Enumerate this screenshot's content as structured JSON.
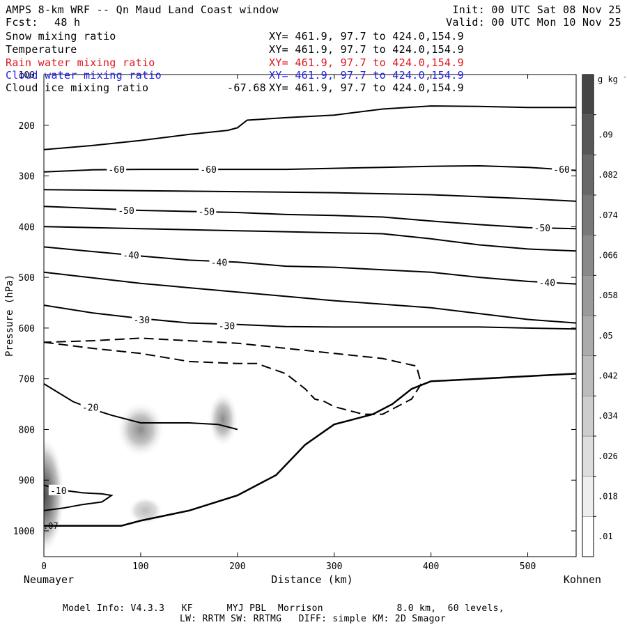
{
  "header": {
    "title": "AMPS 8-km WRF -- Qn Maud Land Coast window",
    "fcst_label": "Fcst:",
    "fcst_value": "48 h",
    "init": "Init: 00 UTC Sat 08 Nov 25",
    "valid": "Valid: 00 UTC Mon 10 Nov 25"
  },
  "fields": [
    {
      "label": "Snow mixing ratio",
      "xy": "XY= 461.9, 97.7 to 424.0,154.9",
      "color": "#000000"
    },
    {
      "label": "Temperature",
      "xy": "XY= 461.9, 97.7 to 424.0,154.9",
      "color": "#000000"
    },
    {
      "label": "Rain water mixing ratio",
      "xy": "XY= 461.9, 97.7 to 424.0,154.9",
      "color": "#e0141e"
    },
    {
      "label": "Cloud water mixing ratio",
      "xy": "XY= 461.9, 97.7 to 424.0,154.9",
      "color": "#1e1ee0"
    },
    {
      "label": "Cloud ice mixing ratio",
      "xy": "XY= 461.9, 97.7 to 424.0,154.9",
      "color": "#000000",
      "value": "-67.68"
    }
  ],
  "footer": {
    "line1": "Model Info: V4.3.3   KF      MYJ PBL  Morrison             8.0 km,  60 levels,",
    "line2": "LW: RRTM SW: RRTMG   DIFF: simple KM: 2D Smagor"
  },
  "chart_data": {
    "type": "contour",
    "xlabel": "Distance (km)",
    "ylabel": "Pressure (hPa)",
    "x_left_label": "Neumayer",
    "x_right_label": "Kohnen",
    "xlim": [
      0,
      550
    ],
    "ylim": [
      1050,
      100
    ],
    "x_ticks": [
      0,
      100,
      200,
      300,
      400,
      500
    ],
    "y_ticks": [
      100,
      200,
      300,
      400,
      500,
      600,
      700,
      800,
      900,
      1000
    ],
    "colorbar": {
      "unit": "g kg",
      "unit_exp": "-1",
      "levels": [
        ".01",
        ".018",
        ".026",
        ".034",
        ".042",
        ".05",
        ".058",
        ".066",
        ".074",
        ".082",
        ".09"
      ]
    },
    "temperature_contours": [
      {
        "label": "-60",
        "points": [
          [
            0,
            292
          ],
          [
            50,
            288
          ],
          [
            100,
            287
          ],
          [
            150,
            287
          ],
          [
            200,
            287
          ],
          [
            250,
            287
          ],
          [
            300,
            285
          ],
          [
            350,
            283
          ],
          [
            400,
            281
          ],
          [
            450,
            280
          ],
          [
            500,
            283
          ],
          [
            550,
            289
          ]
        ],
        "labels_at": [
          [
            75,
            287
          ],
          [
            170,
            287
          ],
          [
            535,
            287
          ]
        ]
      },
      {
        "label": "",
        "points": [
          [
            0,
            327
          ],
          [
            100,
            329
          ],
          [
            200,
            331
          ],
          [
            300,
            333
          ],
          [
            400,
            337
          ],
          [
            500,
            345
          ],
          [
            550,
            350
          ]
        ]
      },
      {
        "label": "-50",
        "points": [
          [
            0,
            360
          ],
          [
            50,
            364
          ],
          [
            100,
            368
          ],
          [
            150,
            370
          ],
          [
            200,
            372
          ],
          [
            250,
            376
          ],
          [
            300,
            378
          ],
          [
            350,
            381
          ],
          [
            400,
            389
          ],
          [
            450,
            396
          ],
          [
            500,
            402
          ],
          [
            550,
            404
          ]
        ],
        "labels_at": [
          [
            85,
            368
          ],
          [
            168,
            370
          ],
          [
            515,
            402
          ]
        ]
      },
      {
        "label": "",
        "points": [
          [
            0,
            400
          ],
          [
            100,
            404
          ],
          [
            200,
            408
          ],
          [
            300,
            412
          ],
          [
            350,
            414
          ],
          [
            400,
            424
          ],
          [
            450,
            436
          ],
          [
            500,
            444
          ],
          [
            550,
            448
          ]
        ]
      },
      {
        "label": "-40",
        "points": [
          [
            0,
            440
          ],
          [
            50,
            449
          ],
          [
            100,
            458
          ],
          [
            150,
            466
          ],
          [
            200,
            470
          ],
          [
            250,
            478
          ],
          [
            300,
            480
          ],
          [
            350,
            485
          ],
          [
            400,
            490
          ],
          [
            450,
            500
          ],
          [
            500,
            508
          ],
          [
            550,
            513
          ]
        ],
        "labels_at": [
          [
            90,
            456
          ],
          [
            181,
            470
          ],
          [
            520,
            510
          ]
        ]
      },
      {
        "label": "",
        "points": [
          [
            0,
            490
          ],
          [
            100,
            512
          ],
          [
            200,
            529
          ],
          [
            300,
            546
          ],
          [
            400,
            560
          ],
          [
            500,
            583
          ],
          [
            550,
            590
          ]
        ]
      },
      {
        "label": "-30",
        "points": [
          [
            0,
            555
          ],
          [
            50,
            570
          ],
          [
            100,
            581
          ],
          [
            150,
            590
          ],
          [
            200,
            593
          ],
          [
            250,
            597
          ],
          [
            300,
            598
          ],
          [
            350,
            598
          ],
          [
            400,
            598
          ],
          [
            450,
            598
          ],
          [
            500,
            600
          ],
          [
            550,
            602
          ]
        ],
        "labels_at": [
          [
            101,
            584
          ],
          [
            189,
            595
          ]
        ]
      },
      {
        "label": "-20",
        "points": [
          [
            0,
            710
          ],
          [
            30,
            745
          ],
          [
            50,
            760
          ],
          [
            70,
            772
          ],
          [
            100,
            787
          ],
          [
            150,
            787
          ],
          [
            180,
            790
          ],
          [
            200,
            800
          ]
        ],
        "labels_at": [
          [
            48,
            756
          ]
        ]
      },
      {
        "label": "-10",
        "points": [
          [
            0,
            910
          ],
          [
            20,
            920
          ],
          [
            40,
            925
          ],
          [
            60,
            927
          ],
          [
            70,
            930
          ],
          [
            60,
            943
          ],
          [
            40,
            948
          ],
          [
            20,
            955
          ],
          [
            0,
            960
          ]
        ],
        "labels_at": [
          [
            15,
            920
          ]
        ]
      }
    ],
    "tropopause_contour": {
      "points": [
        [
          0,
          248
        ],
        [
          50,
          240
        ],
        [
          100,
          230
        ],
        [
          150,
          218
        ],
        [
          190,
          210
        ],
        [
          200,
          205
        ],
        [
          210,
          190
        ],
        [
          250,
          185
        ],
        [
          300,
          180
        ],
        [
          350,
          168
        ],
        [
          400,
          162
        ],
        [
          450,
          163
        ],
        [
          500,
          165
        ],
        [
          550,
          165
        ]
      ]
    },
    "snow_contour": {
      "points": [
        [
          0,
          628
        ],
        [
          50,
          640
        ],
        [
          100,
          650
        ],
        [
          150,
          666
        ],
        [
          200,
          670
        ],
        [
          220,
          670
        ],
        [
          250,
          690
        ],
        [
          270,
          720
        ],
        [
          280,
          740
        ],
        [
          290,
          745
        ],
        [
          300,
          755
        ],
        [
          330,
          770
        ],
        [
          350,
          770
        ],
        [
          360,
          760
        ],
        [
          380,
          740
        ],
        [
          390,
          710
        ],
        [
          385,
          675
        ],
        [
          350,
          660
        ],
        [
          300,
          650
        ],
        [
          250,
          640
        ],
        [
          200,
          630
        ],
        [
          100,
          620
        ],
        [
          50,
          625
        ],
        [
          0,
          628
        ]
      ]
    },
    "terrain_contour": {
      "points": [
        [
          0,
          990
        ],
        [
          50,
          990
        ],
        [
          80,
          990
        ],
        [
          100,
          980
        ],
        [
          150,
          960
        ],
        [
          200,
          930
        ],
        [
          240,
          890
        ],
        [
          270,
          830
        ],
        [
          300,
          790
        ],
        [
          320,
          780
        ],
        [
          340,
          770
        ],
        [
          360,
          750
        ],
        [
          380,
          720
        ],
        [
          400,
          705
        ],
        [
          450,
          700
        ],
        [
          500,
          695
        ],
        [
          550,
          690
        ]
      ]
    },
    "shaded_maxima": [
      {
        "x": 0,
        "p": 930,
        "value": 0.07
      },
      {
        "x": 100,
        "p": 800,
        "value": 0.04
      },
      {
        "x": 185,
        "p": 780,
        "value": 0.03
      },
      {
        "x": 105,
        "p": 960,
        "value": 0.015
      }
    ],
    "contour_value_annotation": ".07"
  }
}
